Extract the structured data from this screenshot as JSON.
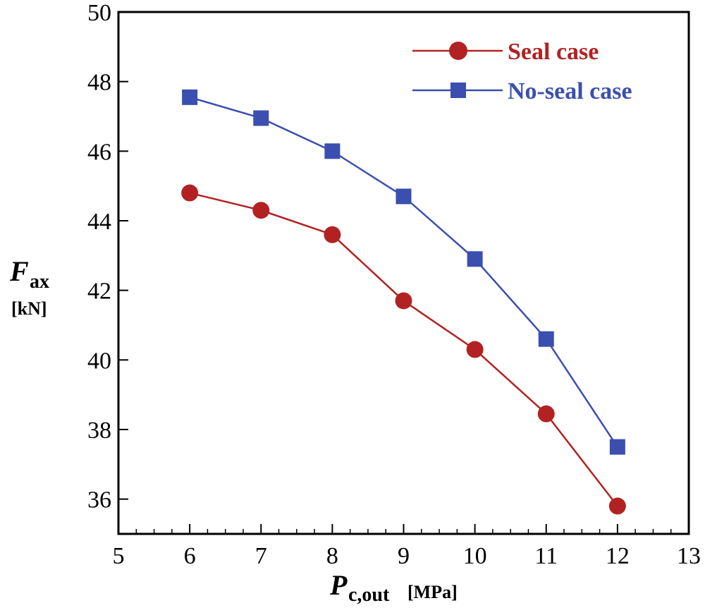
{
  "chart_data": {
    "type": "line",
    "x": [
      6,
      7,
      8,
      9,
      10,
      11,
      12
    ],
    "series": [
      {
        "name": "Seal case",
        "color": "#b22222",
        "marker": "circle",
        "values": [
          44.8,
          44.3,
          43.6,
          41.7,
          40.3,
          38.45,
          35.8
        ]
      },
      {
        "name": "No-seal case",
        "color": "#3a4fb0",
        "marker": "square",
        "values": [
          47.55,
          46.95,
          46.0,
          44.7,
          42.9,
          40.6,
          37.5
        ]
      }
    ],
    "xlim": [
      5,
      13
    ],
    "ylim": [
      35,
      50
    ],
    "xticks": [
      5,
      6,
      7,
      8,
      9,
      10,
      11,
      12,
      13
    ],
    "yticks": [
      36,
      38,
      40,
      42,
      44,
      46,
      48,
      50
    ],
    "xlabel": {
      "symbol": "P",
      "subscript": "c,out",
      "unit": "[MPa]"
    },
    "ylabel": {
      "symbol": "F",
      "subscript": "ax",
      "unit": "[kN]"
    },
    "legend_position": "top-right",
    "grid": false
  }
}
